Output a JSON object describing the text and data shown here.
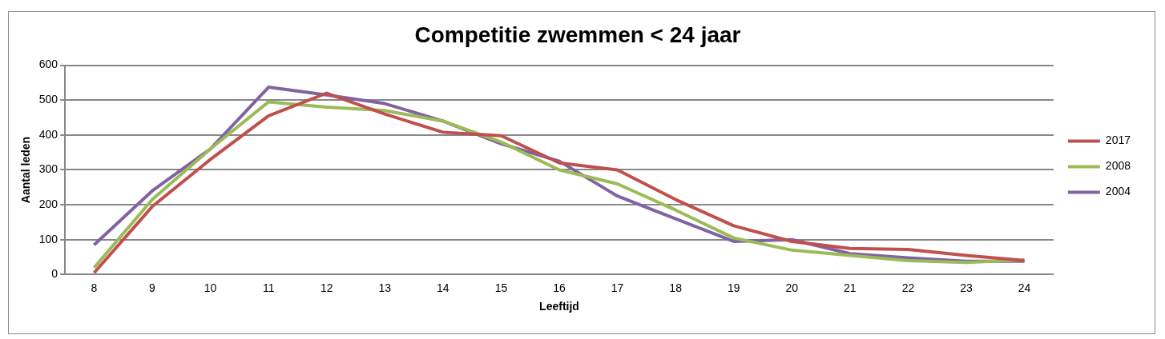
{
  "chart_data": {
    "type": "line",
    "title": "Competitie zwemmen < 24 jaar",
    "xlabel": "Leeftijd",
    "ylabel": "Aantal leden",
    "categories": [
      "8",
      "9",
      "10",
      "11",
      "12",
      "13",
      "14",
      "15",
      "16",
      "17",
      "18",
      "19",
      "20",
      "21",
      "22",
      "23",
      "24"
    ],
    "series": [
      {
        "name": "2017",
        "color": "#c0504d",
        "values": [
          5,
          195,
          330,
          455,
          520,
          460,
          408,
          398,
          320,
          300,
          215,
          140,
          95,
          75,
          72,
          55,
          40
        ]
      },
      {
        "name": "2008",
        "color": "#9bbb59",
        "values": [
          20,
          215,
          360,
          495,
          480,
          470,
          440,
          380,
          300,
          260,
          185,
          105,
          70,
          55,
          40,
          35,
          42
        ]
      },
      {
        "name": "2004",
        "color": "#8064a2",
        "values": [
          85,
          240,
          360,
          537,
          515,
          490,
          440,
          375,
          325,
          225,
          160,
          95,
          100,
          60,
          48,
          38,
          38
        ]
      }
    ],
    "ylim": [
      0,
      600
    ],
    "yticks": [
      0,
      100,
      200,
      300,
      400,
      500,
      600
    ],
    "grid": "y",
    "legend": "right",
    "marker": "none",
    "line_style": "solid"
  }
}
